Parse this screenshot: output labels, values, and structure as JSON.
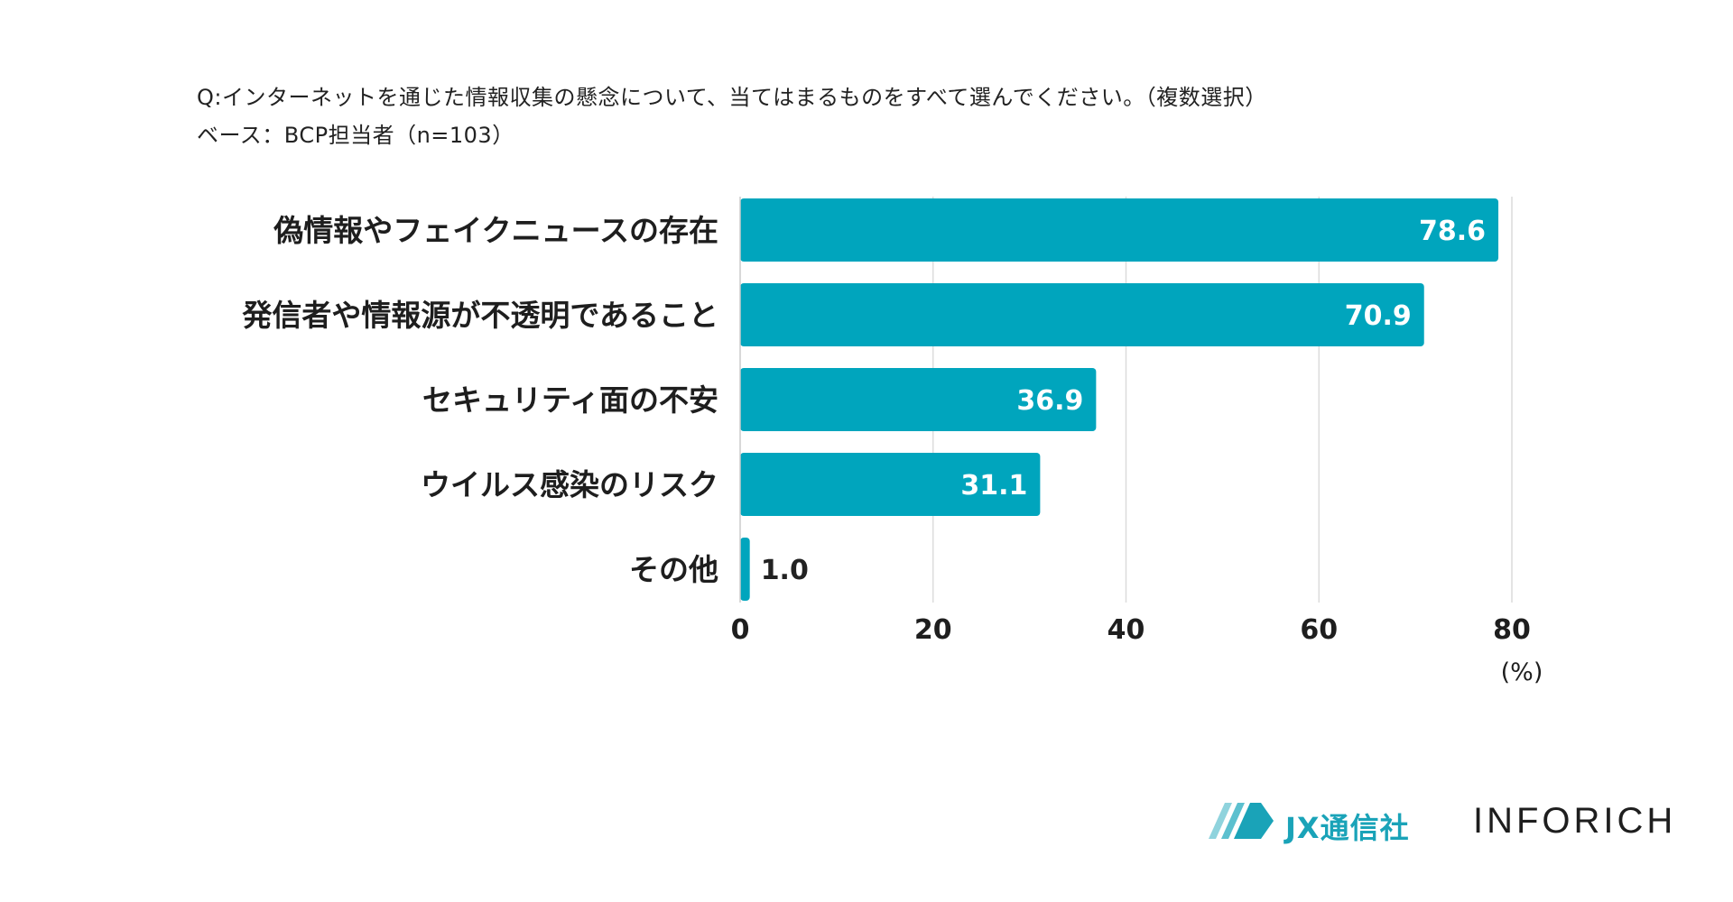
{
  "header": {
    "question": "Q:インターネットを通じた情報収集の懸念について、当てはまるものをすべて選んでください。（複数選択）",
    "base": "ベース：BCP担当者（n=103）"
  },
  "chart_data": {
    "type": "bar",
    "orientation": "horizontal",
    "categories": [
      "偽情報やフェイクニュースの存在",
      "発信者や情報源が不透明であること",
      "セキュリティ面の不安",
      "ウイルス感染のリスク",
      "その他"
    ],
    "values": [
      78.6,
      70.9,
      36.9,
      31.1,
      1.0
    ],
    "value_labels": [
      "78.6",
      "70.9",
      "36.9",
      "31.1",
      "1.0"
    ],
    "xlim": [
      0,
      80
    ],
    "xticks": [
      0,
      20,
      40,
      60,
      80
    ],
    "xtick_labels": [
      "0",
      "20",
      "40",
      "60",
      "80"
    ],
    "unit_label": "(%)",
    "grid": true,
    "bar_color": "#00a5bd"
  },
  "footer": {
    "logo_jx": "JX通信社",
    "logo_inforich": "INFORICH"
  }
}
